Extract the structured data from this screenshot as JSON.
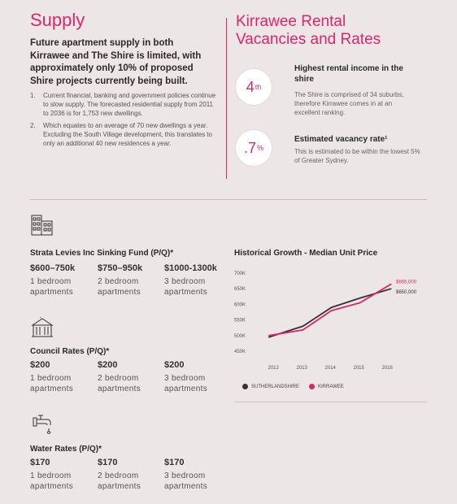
{
  "supply": {
    "title": "Supply",
    "intro": "Future apartment supply in both Kirrawee and The Shire is limited, with approximately only 10% of proposed Shire projects currently being built.",
    "points": [
      {
        "num": "1.",
        "text": "Current financial, banking and government policies continue to slow supply. The forecasted residential supply from 2011 to 2036 is for 1,753 new dwellings."
      },
      {
        "num": "2.",
        "text": "Which equates to an average of 70 new dwellings a year. Excluding the South Village development, this translates to only an additional 40 new residences a year."
      }
    ]
  },
  "rental": {
    "title_line1": "Kirrawee Rental",
    "title_line2": "Vacancies and Rates",
    "stats": [
      {
        "badge": "4",
        "badge_sup": "th",
        "heading": "Highest rental income in the shire",
        "text": "The Shire is comprised of 34 suburbs, therefore Kirrawee comes in at an excellent ranking."
      },
      {
        "badge": ".7",
        "badge_sup": "%",
        "heading": "Estimated vacancy rate¹",
        "text": "This is estimated to be within the lowest 5% of Greater Sydney."
      }
    ]
  },
  "strata": {
    "icon": "apartment-building-icon",
    "title": "Strata Levies Inc Sinking Fund (P/Q)*",
    "cols": [
      {
        "price": "$600–750k",
        "line1": "1 bedroom",
        "line2": "apartments"
      },
      {
        "price": "$750–950k",
        "line1": "2 bedroom",
        "line2": "apartments"
      },
      {
        "price": "$1000-1300k",
        "line1": "3 bedroom",
        "line2": "apartments"
      }
    ]
  },
  "council": {
    "icon": "council-building-icon",
    "title": "Council Rates (P/Q)*",
    "cols": [
      {
        "price": "$200",
        "line1": "1 bedroom",
        "line2": "apartments"
      },
      {
        "price": "$200",
        "line1": "2 bedroom",
        "line2": "apartments"
      },
      {
        "price": "$200",
        "line1": "3 bedroom",
        "line2": "apartments"
      }
    ]
  },
  "water": {
    "icon": "water-tap-icon",
    "title": "Water Rates (P/Q)*",
    "cols": [
      {
        "price": "$170",
        "line1": "1 bedroom",
        "line2": "apartments"
      },
      {
        "price": "$170",
        "line1": "2 bedroom",
        "line2": "apartments"
      },
      {
        "price": "$170",
        "line1": "3 bedroom",
        "line2": "apartments"
      }
    ]
  },
  "colors": {
    "accent": "#e0246b",
    "dark": "#333333",
    "background": "#ece6e6"
  },
  "chart_data": {
    "type": "line",
    "title": "Historical Growth - Median Unit Price",
    "x": [
      2011.8,
      2013,
      2014,
      2015,
      2016.1
    ],
    "x_ticks": [
      "2012",
      "2013",
      "2014",
      "2015",
      "2016"
    ],
    "y_ticks": [
      "700K",
      "650K",
      "600K",
      "550K",
      "500K",
      "450K"
    ],
    "ylim": [
      450000,
      700000
    ],
    "series": [
      {
        "name": "SUTHERLANDSHIRE",
        "color": "#333333",
        "values": [
          495000,
          530000,
          590000,
          620000,
          650000
        ],
        "end_label": "$650,000"
      },
      {
        "name": "KIRRAWEE",
        "color": "#e0246b",
        "values": [
          500000,
          518000,
          580000,
          605000,
          665000
        ],
        "end_label": "$665,000"
      }
    ],
    "legend_position": "bottom"
  }
}
